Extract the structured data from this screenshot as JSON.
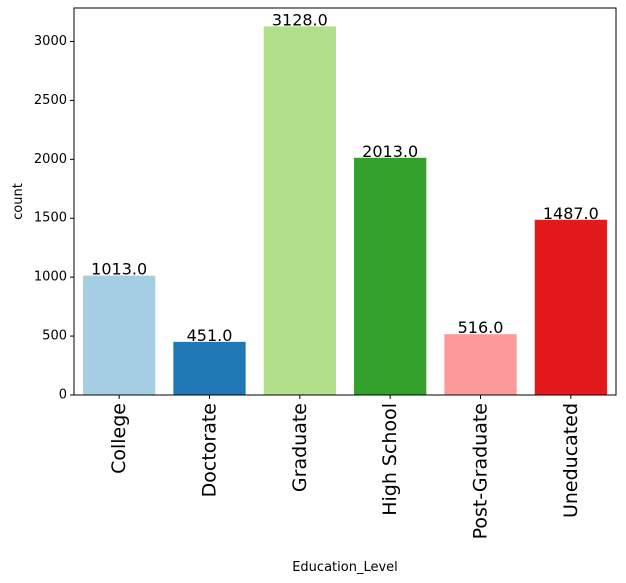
{
  "chart_data": {
    "type": "bar",
    "categories": [
      "College",
      "Doctorate",
      "Graduate",
      "High School",
      "Post-Graduate",
      "Uneducated"
    ],
    "values": [
      1013,
      451,
      3128,
      2013,
      516,
      1487
    ],
    "data_labels": [
      "1013.0",
      "451.0",
      "3128.0",
      "2013.0",
      "516.0",
      "1487.0"
    ],
    "colors": [
      "#a6cee3",
      "#1f78b4",
      "#b2df8a",
      "#33a02c",
      "#fb9a99",
      "#e31a1c"
    ],
    "xlabel": "Education_Level",
    "ylabel": "count",
    "ylim": [
      0,
      3284
    ],
    "yticks": [
      0,
      500,
      1000,
      1500,
      2000,
      2500,
      3000
    ],
    "grid": false,
    "legend": "none"
  }
}
